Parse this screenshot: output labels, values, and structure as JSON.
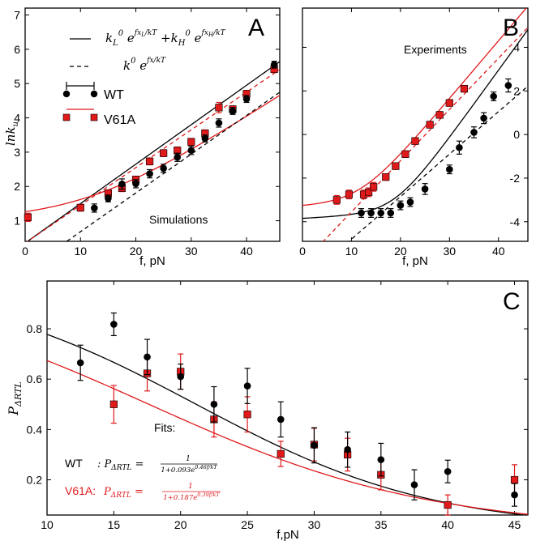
{
  "colors": {
    "wt": "#000000",
    "v61a": "#e0191b"
  },
  "chart_data": [
    {
      "panel": "A",
      "type": "scatter",
      "xlabel": "f, pN",
      "ylabel": "ln k_u",
      "xlim": [
        0,
        46
      ],
      "ylim": [
        0.4,
        7.2
      ],
      "xticks": [
        0,
        10,
        20,
        30,
        40
      ],
      "yticks": [
        1,
        2,
        3,
        4,
        5,
        6,
        7
      ],
      "annotation": "Simulations",
      "legend": {
        "position": "top-left",
        "entries": [
          "WT",
          "V61A"
        ],
        "line_solid_label": "k_L^0 e^{fx_L/kT} + k_H^0 e^{fx_H/kT}",
        "line_dashed_label": "k^0 e^{fx/kT}"
      },
      "series": [
        {
          "name": "WT",
          "marker": "circle",
          "x": [
            12.5,
            15,
            17.5,
            20,
            22.5,
            25,
            27.5,
            30,
            32.5,
            35,
            37.5,
            40,
            45
          ],
          "y": [
            1.37,
            1.65,
            2.07,
            2.08,
            2.37,
            2.53,
            2.85,
            3.05,
            3.4,
            3.85,
            4.2,
            4.55,
            5.55
          ],
          "err": [
            0.12,
            0.1,
            0.15,
            0.12,
            0.12,
            0.12,
            0.12,
            0.12,
            0.1,
            0.12,
            0.1,
            0.1,
            0.1
          ]
        },
        {
          "name": "V61A",
          "marker": "square",
          "x": [
            0.5,
            10,
            15,
            17.5,
            20,
            22.5,
            25,
            27.5,
            30,
            32.5,
            35,
            37.5,
            40,
            45
          ],
          "y": [
            1.1,
            1.38,
            1.8,
            1.95,
            2.2,
            2.73,
            2.97,
            3.05,
            3.3,
            3.55,
            4.3,
            4.25,
            4.7,
            5.42
          ],
          "err": [
            0.12,
            0.1,
            0.1,
            0.1,
            0.1,
            0.1,
            0.1,
            0.1,
            0.1,
            0.1,
            0.15,
            0.1,
            0.1,
            0.1
          ]
        }
      ],
      "fits": [
        {
          "series": "WT",
          "style": "solid",
          "kL": 0.0,
          "xL": 0.0,
          "aH": 0.35,
          "bH": 0.115
        },
        {
          "series": "V61A",
          "style": "solid",
          "aL": 1.0,
          "bL": 0.0,
          "aH": -0.2,
          "bH": 0.105
        },
        {
          "series": "WT",
          "style": "dashed",
          "a": -0.45,
          "b": 0.113
        },
        {
          "series": "V61A",
          "style": "dashed",
          "a": 0.35,
          "b": 0.11
        }
      ]
    },
    {
      "panel": "B",
      "type": "scatter",
      "xlabel": "f, pN",
      "xlim": [
        0,
        46
      ],
      "ylim": [
        -4.9,
        5.8
      ],
      "xticks": [
        0,
        10,
        20,
        30,
        40
      ],
      "yticks": [
        -4,
        -2,
        0,
        2,
        4
      ],
      "annotation": "Experiments",
      "series": [
        {
          "name": "WT",
          "marker": "circle",
          "x": [
            12,
            14,
            16,
            18,
            20,
            22,
            25,
            30,
            32,
            35,
            37,
            39,
            42
          ],
          "y": [
            -3.6,
            -3.6,
            -3.6,
            -3.6,
            -3.25,
            -3.1,
            -2.5,
            -1.6,
            -0.6,
            0.1,
            0.75,
            1.75,
            2.25
          ],
          "err": [
            0.2,
            0.2,
            0.2,
            0.2,
            0.2,
            0.2,
            0.25,
            0.2,
            0.3,
            0.25,
            0.25,
            0.2,
            0.3
          ]
        },
        {
          "name": "V61A",
          "marker": "square",
          "x": [
            7,
            9.5,
            12.5,
            13.5,
            14.5,
            17,
            19,
            21,
            23,
            26,
            28,
            30,
            33
          ],
          "y": [
            -3.0,
            -2.75,
            -2.75,
            -2.65,
            -2.4,
            -1.95,
            -1.45,
            -0.9,
            -0.3,
            0.45,
            0.9,
            1.45,
            2.1
          ],
          "err": [
            0.2,
            0.2,
            0.2,
            0.2,
            0.2,
            0.15,
            0.15,
            0.15,
            0.15,
            0.15,
            0.15,
            0.15,
            0.15
          ]
        }
      ]
    },
    {
      "panel": "C",
      "type": "scatter",
      "xlabel": "f,pN",
      "ylabel": "P_ΔRTL",
      "xlim": [
        10,
        46
      ],
      "ylim": [
        0.06,
        0.99
      ],
      "xticks": [
        10,
        15,
        20,
        25,
        30,
        35,
        40,
        45
      ],
      "yticks": [
        0.2,
        0.4,
        0.6,
        0.8
      ],
      "fits_title": "Fits:",
      "fit_labels": [
        {
          "series": "WT",
          "text_prefix": "WT",
          "formula": "1+0.093e^{0.46f/kT}"
        },
        {
          "series": "V61A",
          "text_prefix": "V61A:",
          "formula": "1+0.187e^{0.39f/kT}"
        }
      ],
      "series": [
        {
          "name": "WT",
          "marker": "circle",
          "x": [
            12.5,
            15,
            17.5,
            20,
            22.5,
            25,
            27.5,
            30,
            32.5,
            35,
            37.5,
            40,
            45
          ],
          "y": [
            0.665,
            0.818,
            0.688,
            0.61,
            0.5,
            0.573,
            0.44,
            0.337,
            0.32,
            0.28,
            0.18,
            0.233,
            0.14
          ],
          "err": [
            0.07,
            0.045,
            0.07,
            0.05,
            0.07,
            0.07,
            0.07,
            0.07,
            0.07,
            0.065,
            0.06,
            0.045,
            0.045
          ]
        },
        {
          "name": "V61A",
          "marker": "square",
          "x": [
            15,
            17.5,
            20,
            22.5,
            25,
            27.5,
            30,
            32.5,
            35,
            40,
            45
          ],
          "y": [
            0.5,
            0.623,
            0.63,
            0.44,
            0.46,
            0.303,
            0.34,
            0.3,
            0.22,
            0.1,
            0.2
          ],
          "err": [
            0.075,
            0.07,
            0.07,
            0.07,
            0.07,
            0.05,
            0.065,
            0.065,
            0.06,
            0.04,
            0.06
          ]
        }
      ],
      "fits": [
        {
          "series": "WT",
          "A": 0.093,
          "B": 0.46
        },
        {
          "series": "V61A",
          "A": 0.187,
          "B": 0.39
        }
      ]
    }
  ]
}
